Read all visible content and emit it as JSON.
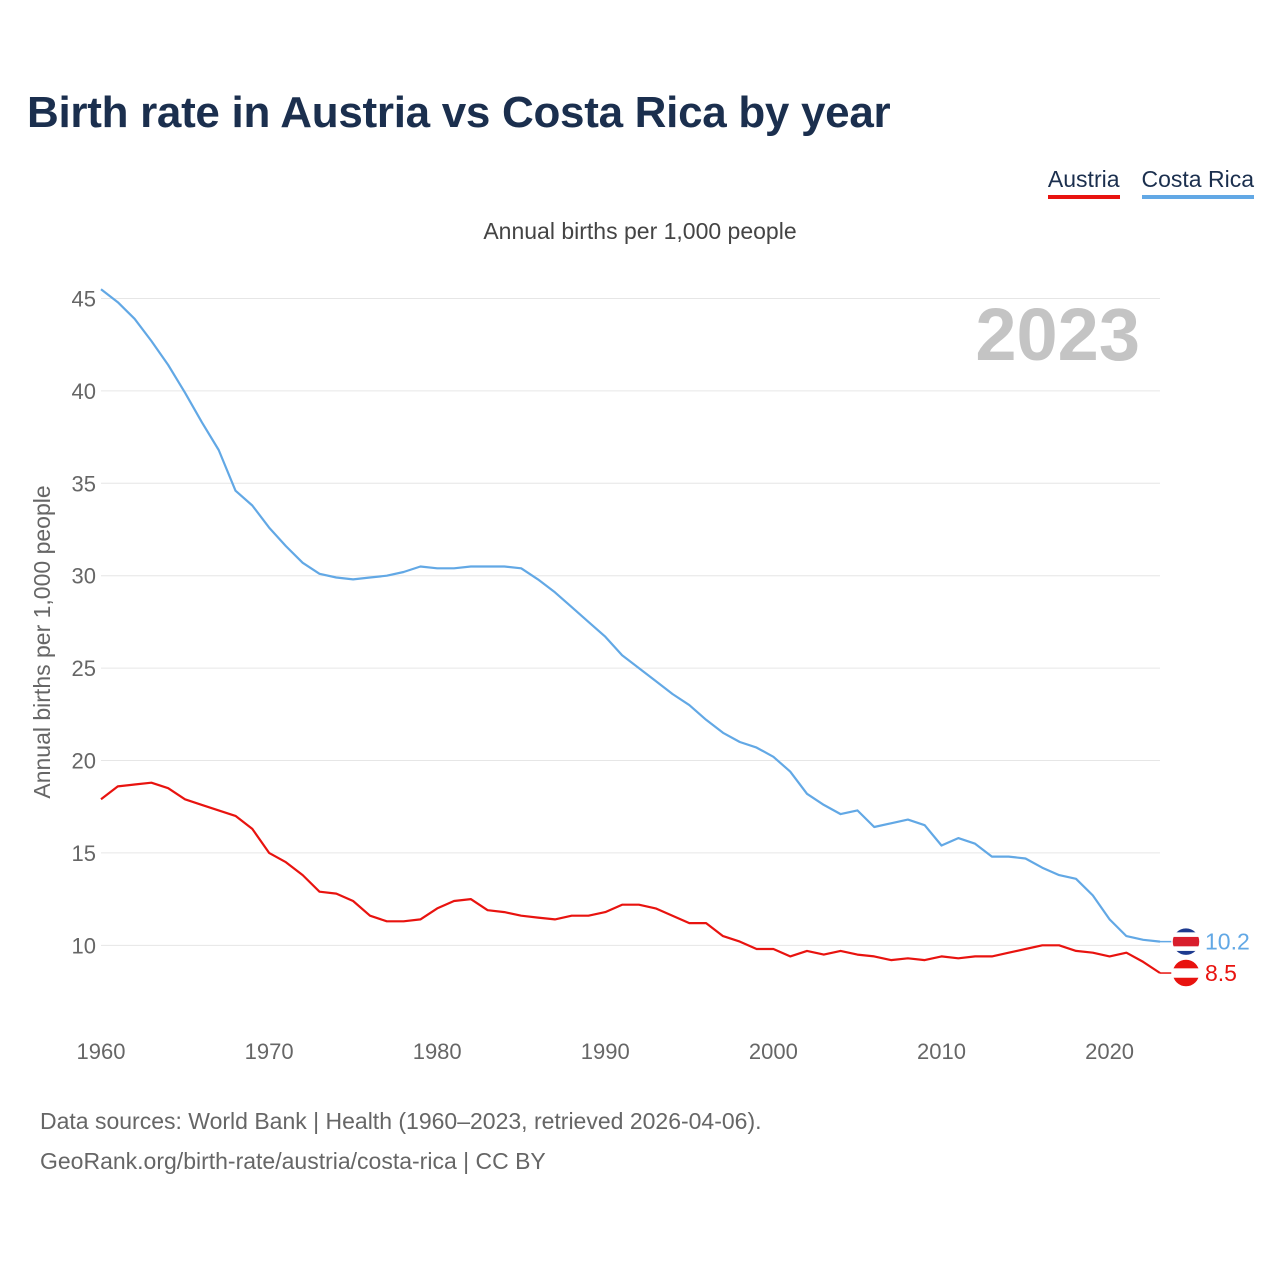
{
  "header": {
    "title": "Birth rate in Austria vs Costa Rica by year",
    "subtitle": "Annual births per 1,000 people"
  },
  "legend": [
    {
      "name": "Austria"
    },
    {
      "name": "Costa Rica"
    }
  ],
  "colors": {
    "austria": "#e8130f",
    "costa_rica": "#62a8e5",
    "grid": "#e6e6e6",
    "axis_text": "#666666",
    "year_watermark": "#c4c4c4"
  },
  "footer": {
    "source": "Data sources: World Bank | Health (1960–2023, retrieved 2026-04-06).",
    "credit": "GeoRank.org/birth-rate/austria/costa-rica | CC BY"
  },
  "chart_data": {
    "type": "line",
    "title": "Birth rate in Austria vs Costa Rica by year",
    "xlabel": "",
    "ylabel": "Annual births per 1,000 people",
    "year_label": "2023",
    "xlim": [
      1960,
      2023
    ],
    "ylim": [
      6.5,
      46
    ],
    "x_ticks": [
      "1960",
      "1970",
      "1980",
      "1990",
      "2000",
      "2010",
      "2020"
    ],
    "y_ticks": [
      "10",
      "15",
      "20",
      "25",
      "30",
      "35",
      "40",
      "45"
    ],
    "x": [
      1960,
      1961,
      1962,
      1963,
      1964,
      1965,
      1966,
      1967,
      1968,
      1969,
      1970,
      1971,
      1972,
      1973,
      1974,
      1975,
      1976,
      1977,
      1978,
      1979,
      1980,
      1981,
      1982,
      1983,
      1984,
      1985,
      1986,
      1987,
      1988,
      1989,
      1990,
      1991,
      1992,
      1993,
      1994,
      1995,
      1996,
      1997,
      1998,
      1999,
      2000,
      2001,
      2002,
      2003,
      2004,
      2005,
      2006,
      2007,
      2008,
      2009,
      2010,
      2011,
      2012,
      2013,
      2014,
      2015,
      2016,
      2017,
      2018,
      2019,
      2020,
      2021,
      2022,
      2023
    ],
    "series": [
      {
        "name": "Austria",
        "end_label": "8.5",
        "values": [
          17.9,
          18.6,
          18.7,
          18.8,
          18.5,
          17.9,
          17.6,
          17.3,
          17.0,
          16.3,
          15.0,
          14.5,
          13.8,
          12.9,
          12.8,
          12.4,
          11.6,
          11.3,
          11.3,
          11.4,
          12.0,
          12.4,
          12.5,
          11.9,
          11.8,
          11.6,
          11.5,
          11.4,
          11.6,
          11.6,
          11.8,
          12.2,
          12.2,
          12.0,
          11.6,
          11.2,
          11.2,
          10.5,
          10.2,
          9.8,
          9.8,
          9.4,
          9.7,
          9.5,
          9.7,
          9.5,
          9.4,
          9.2,
          9.3,
          9.2,
          9.4,
          9.3,
          9.4,
          9.4,
          9.6,
          9.8,
          10.0,
          10.0,
          9.7,
          9.6,
          9.4,
          9.6,
          9.1,
          8.5
        ]
      },
      {
        "name": "Costa Rica",
        "end_label": "10.2",
        "values": [
          45.5,
          44.8,
          43.9,
          42.7,
          41.4,
          39.9,
          38.3,
          36.8,
          34.6,
          33.8,
          32.6,
          31.6,
          30.7,
          30.1,
          29.9,
          29.8,
          29.9,
          30.0,
          30.2,
          30.5,
          30.4,
          30.4,
          30.5,
          30.5,
          30.5,
          30.4,
          29.8,
          29.1,
          28.3,
          27.5,
          26.7,
          25.7,
          25.0,
          24.3,
          23.6,
          23.0,
          22.2,
          21.5,
          21.0,
          20.7,
          20.2,
          19.4,
          18.2,
          17.6,
          17.1,
          17.3,
          16.4,
          16.6,
          16.8,
          16.5,
          15.4,
          15.8,
          15.5,
          14.8,
          14.8,
          14.7,
          14.2,
          13.8,
          13.6,
          12.7,
          11.4,
          10.5,
          10.3,
          10.2
        ]
      }
    ]
  }
}
